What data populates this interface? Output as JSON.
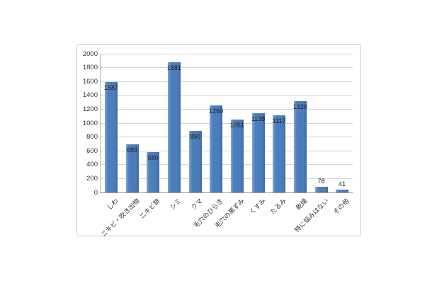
{
  "chart_data": {
    "type": "bar",
    "title": "",
    "xlabel": "",
    "ylabel": "",
    "categories": [
      "しわ",
      "ニキビ・吹き出物",
      "ニキビ跡",
      "シミ",
      "クマ",
      "毛穴のひらき",
      "毛穴の黒ずみ",
      "くすみ",
      "たるみ",
      "乾燥",
      "特に悩みはない",
      "その他"
    ],
    "values": [
      1587,
      689,
      580,
      1881,
      890,
      1260,
      1051,
      1138,
      1117,
      1320,
      78,
      41
    ],
    "data_labels_shown": true,
    "data_label_position": "inside-end",
    "ylim": [
      0,
      2000
    ],
    "yticks": [
      0,
      200,
      400,
      600,
      800,
      1000,
      1200,
      1400,
      1600,
      1800,
      2000
    ],
    "grid": true,
    "legend": false,
    "x_label_rotation_deg": 45
  },
  "colors": {
    "bar": "#4e7fbe",
    "bar_edge_dark": "#3f6ba6",
    "gridline": "#d6d6d6",
    "axis_line": "#9a9a9a",
    "chart_border": "#cfcfcf",
    "text": "#333333",
    "data_label_text": "#1f1f1f",
    "background": "#ffffff"
  }
}
